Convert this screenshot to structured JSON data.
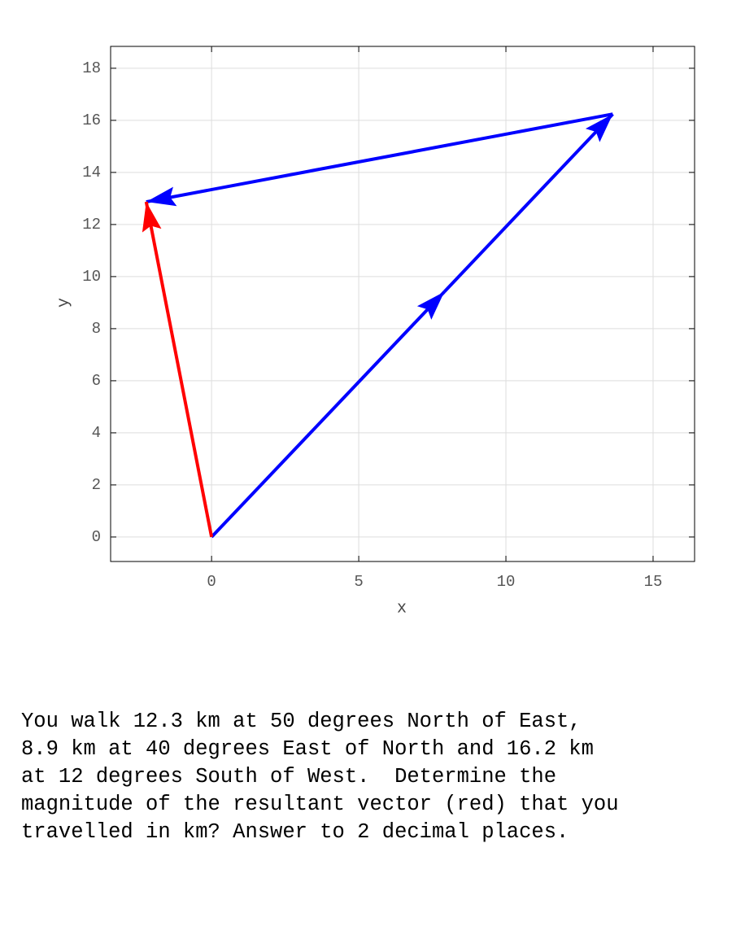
{
  "chart_data": {
    "type": "vector",
    "xlabel": "x",
    "ylabel": "y",
    "xlim": [
      -3.43,
      16.41
    ],
    "ylim": [
      -0.94,
      18.84
    ],
    "xticks": [
      0,
      5,
      10,
      15
    ],
    "yticks": [
      0,
      2,
      4,
      6,
      8,
      10,
      12,
      14,
      16,
      18
    ],
    "grid": true,
    "series": [
      {
        "color": "#0000ff",
        "x": [
          0,
          7.91
        ],
        "values": [
          0,
          9.42
        ]
      },
      {
        "color": "#0000ff",
        "x": [
          7.91,
          13.63
        ],
        "values": [
          9.42,
          16.24
        ]
      },
      {
        "color": "#0000ff",
        "x": [
          13.63,
          -2.22
        ],
        "values": [
          16.24,
          12.87
        ]
      },
      {
        "color": "#ff0000",
        "x": [
          0,
          -2.22
        ],
        "values": [
          0,
          12.87
        ]
      }
    ]
  },
  "question": {
    "lines": [
      "You walk 12.3 km at 50 degrees North of East,",
      "8.9 km at 40 degrees East of North and 16.2 km",
      "at 12 degrees South of West.  Determine the",
      "magnitude of the resultant vector (red) that you",
      "travelled in km? Answer to 2 decimal places."
    ]
  }
}
